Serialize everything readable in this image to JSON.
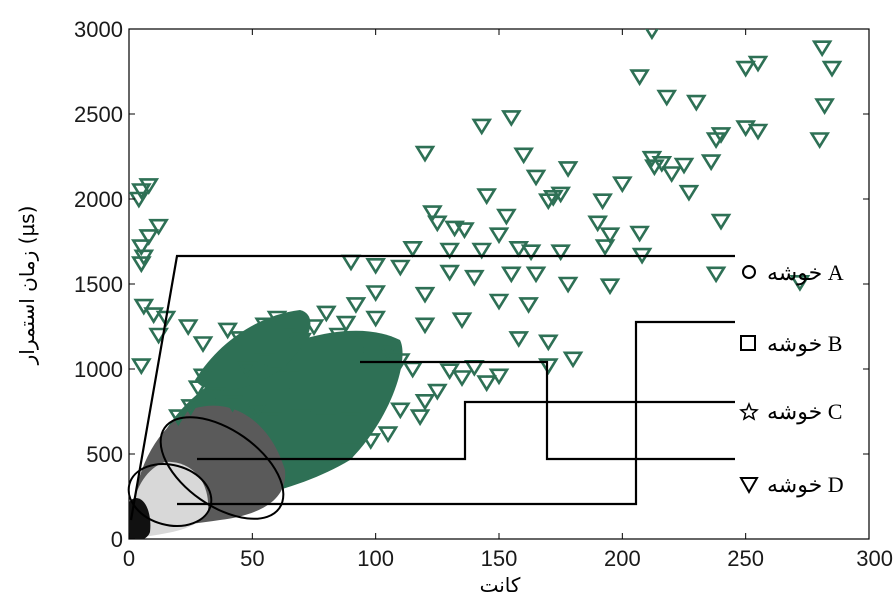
{
  "chart_data": {
    "type": "scatter",
    "xlabel": "کانت",
    "ylabel": "زمان استمرار (µs)",
    "xlim": [
      0,
      300
    ],
    "ylim": [
      0,
      3000
    ],
    "xticks": [
      "0",
      "50",
      "100",
      "150",
      "200",
      "250",
      "300"
    ],
    "yticks": [
      "0",
      "500",
      "1000",
      "1500",
      "2000",
      "2500",
      "3000"
    ],
    "grid": false,
    "legend_position": "right",
    "legend": [
      {
        "marker": "circle",
        "label": "خوشه A"
      },
      {
        "marker": "square",
        "label": "خوشه B"
      },
      {
        "marker": "star",
        "label": "خوشه C"
      },
      {
        "marker": "triangle-down",
        "label": "خوشه D"
      }
    ],
    "colors": {
      "A": "#111111",
      "B": "#d8d8d8",
      "C": "#555555",
      "D": "#2e7055"
    },
    "series_D_points": [
      [
        212,
        2990
      ],
      [
        281,
        2890
      ],
      [
        285,
        2770
      ],
      [
        255,
        2800
      ],
      [
        250,
        2770
      ],
      [
        207,
        2720
      ],
      [
        218,
        2600
      ],
      [
        230,
        2570
      ],
      [
        282,
        2550
      ],
      [
        240,
        2380
      ],
      [
        238,
        2350
      ],
      [
        250,
        2420
      ],
      [
        255,
        2400
      ],
      [
        280,
        2350
      ],
      [
        143,
        2430
      ],
      [
        155,
        2480
      ],
      [
        120,
        2270
      ],
      [
        160,
        2260
      ],
      [
        212,
        2240
      ],
      [
        216,
        2210
      ],
      [
        225,
        2200
      ],
      [
        213,
        2190
      ],
      [
        236,
        2220
      ],
      [
        220,
        2150
      ],
      [
        178,
        2180
      ],
      [
        165,
        2130
      ],
      [
        200,
        2090
      ],
      [
        227,
        2040
      ],
      [
        172,
        2010
      ],
      [
        175,
        2030
      ],
      [
        170,
        1990
      ],
      [
        192,
        1990
      ],
      [
        145,
        2020
      ],
      [
        5,
        2050
      ],
      [
        4,
        2000
      ],
      [
        8,
        2080
      ],
      [
        8,
        1780
      ],
      [
        12,
        1840
      ],
      [
        123,
        1920
      ],
      [
        125,
        1860
      ],
      [
        132,
        1830
      ],
      [
        136,
        1820
      ],
      [
        150,
        1790
      ],
      [
        153,
        1900
      ],
      [
        190,
        1860
      ],
      [
        195,
        1790
      ],
      [
        207,
        1800
      ],
      [
        240,
        1870
      ],
      [
        115,
        1710
      ],
      [
        130,
        1700
      ],
      [
        143,
        1700
      ],
      [
        158,
        1710
      ],
      [
        163,
        1690
      ],
      [
        175,
        1690
      ],
      [
        193,
        1720
      ],
      [
        208,
        1670
      ],
      [
        5,
        1720
      ],
      [
        6,
        1660
      ],
      [
        5,
        1620
      ],
      [
        90,
        1630
      ],
      [
        100,
        1610
      ],
      [
        110,
        1600
      ],
      [
        130,
        1570
      ],
      [
        140,
        1540
      ],
      [
        155,
        1560
      ],
      [
        165,
        1560
      ],
      [
        178,
        1500
      ],
      [
        195,
        1490
      ],
      [
        238,
        1560
      ],
      [
        272,
        1510
      ],
      [
        6,
        1370
      ],
      [
        10,
        1320
      ],
      [
        15,
        1300
      ],
      [
        100,
        1450
      ],
      [
        120,
        1440
      ],
      [
        150,
        1400
      ],
      [
        162,
        1380
      ],
      [
        135,
        1290
      ],
      [
        120,
        1260
      ],
      [
        158,
        1180
      ],
      [
        170,
        1160
      ],
      [
        5,
        1020
      ],
      [
        12,
        1200
      ],
      [
        24,
        1250
      ],
      [
        170,
        1020
      ],
      [
        180,
        1060
      ],
      [
        130,
        990
      ],
      [
        135,
        950
      ],
      [
        140,
        1010
      ],
      [
        145,
        920
      ],
      [
        150,
        960
      ],
      [
        125,
        870
      ],
      [
        120,
        810
      ],
      [
        110,
        760
      ],
      [
        118,
        720
      ],
      [
        105,
        620
      ],
      [
        98,
        580
      ],
      [
        90,
        520
      ],
      [
        30,
        1150
      ],
      [
        40,
        1230
      ],
      [
        45,
        1180
      ],
      [
        55,
        1260
      ],
      [
        60,
        1300
      ],
      [
        65,
        1210
      ],
      [
        70,
        1170
      ],
      [
        75,
        1250
      ],
      [
        85,
        1200
      ],
      [
        95,
        1150
      ],
      [
        105,
        1110
      ],
      [
        110,
        1050
      ],
      [
        115,
        1000
      ],
      [
        100,
        1300
      ],
      [
        88,
        1270
      ],
      [
        92,
        1380
      ],
      [
        80,
        1330
      ],
      [
        55,
        1050
      ],
      [
        60,
        980
      ],
      [
        65,
        940
      ],
      [
        48,
        1000
      ],
      [
        30,
        960
      ],
      [
        28,
        890
      ],
      [
        35,
        850
      ],
      [
        42,
        800
      ],
      [
        52,
        760
      ],
      [
        58,
        700
      ],
      [
        70,
        720
      ],
      [
        80,
        690
      ],
      [
        90,
        700
      ],
      [
        25,
        780
      ],
      [
        20,
        720
      ]
    ]
  }
}
